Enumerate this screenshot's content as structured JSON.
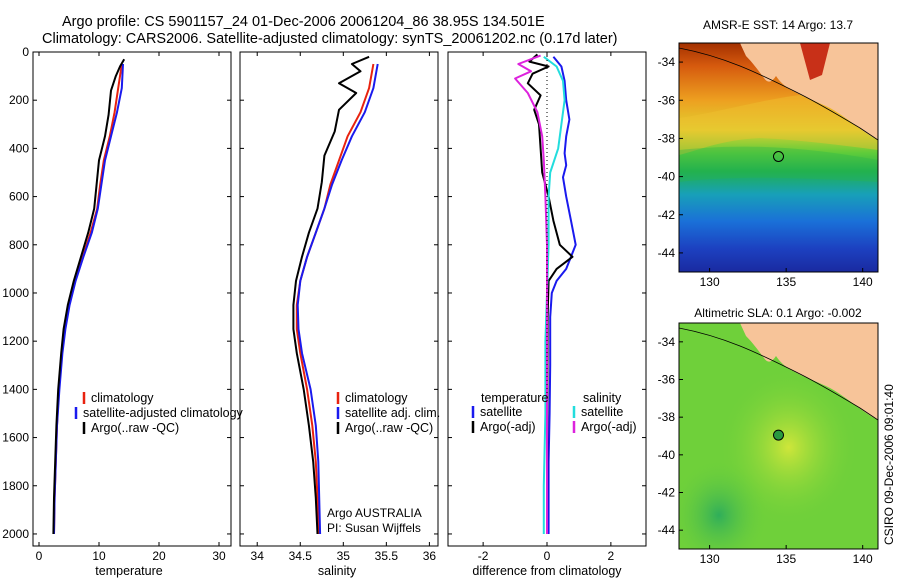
{
  "header": {
    "line1": "Argo profile: CS 5901157_24 01-Dec-2006 20061204_86 38.95S 134.501E",
    "line2": "Climatology: CARS2006. Satellite-adjusted climatology: synTS_20061202.nc (0.17d later)"
  },
  "credit": "CSIRO 09-Dec-2006 09:01:40",
  "colors": {
    "climatology": "#e8220f",
    "satellite": "#1a1aee",
    "argo": "#000000",
    "sal_sat": "#22dddd",
    "sal_argo": "#dd22dd"
  },
  "chart_data": [
    {
      "type": "line",
      "name": "temperature",
      "xlabel": "temperature",
      "xlim": [
        -1,
        32
      ],
      "ylim": [
        2050,
        0
      ],
      "xticks": [
        0,
        10,
        20,
        30
      ],
      "yticks": [
        0,
        200,
        400,
        600,
        800,
        1000,
        1200,
        1400,
        1600,
        1800,
        2000
      ],
      "series": [
        {
          "name": "climatology",
          "color": "#e8220f",
          "points": [
            [
              13.8,
              50
            ],
            [
              13.2,
              150
            ],
            [
              12.6,
              250
            ],
            [
              11.8,
              350
            ],
            [
              10.8,
              450
            ],
            [
              10.2,
              550
            ],
            [
              9.7,
              650
            ],
            [
              8.6,
              750
            ],
            [
              7.3,
              850
            ],
            [
              6.0,
              950
            ],
            [
              5.0,
              1050
            ],
            [
              4.3,
              1150
            ],
            [
              3.8,
              1250
            ],
            [
              3.3,
              1400
            ],
            [
              3.0,
              1550
            ],
            [
              2.8,
              1700
            ],
            [
              2.6,
              1850
            ],
            [
              2.5,
              2000
            ]
          ]
        },
        {
          "name": "satellite-adjusted climatology",
          "color": "#1a1aee",
          "points": [
            [
              14.0,
              50
            ],
            [
              13.8,
              150
            ],
            [
              13.0,
              250
            ],
            [
              12.0,
              350
            ],
            [
              11.0,
              450
            ],
            [
              10.4,
              550
            ],
            [
              9.8,
              650
            ],
            [
              8.8,
              750
            ],
            [
              7.4,
              850
            ],
            [
              6.1,
              950
            ],
            [
              5.1,
              1050
            ],
            [
              4.4,
              1150
            ],
            [
              3.9,
              1250
            ],
            [
              3.4,
              1400
            ],
            [
              3.0,
              1550
            ],
            [
              2.8,
              1700
            ],
            [
              2.6,
              1850
            ],
            [
              2.5,
              2000
            ]
          ]
        },
        {
          "name": "Argo(..raw -QC)",
          "color": "#000000",
          "points": [
            [
              14.2,
              30
            ],
            [
              13.5,
              60
            ],
            [
              12.8,
              100
            ],
            [
              12.0,
              160
            ],
            [
              11.6,
              260
            ],
            [
              11.0,
              350
            ],
            [
              10.0,
              450
            ],
            [
              9.6,
              550
            ],
            [
              9.2,
              650
            ],
            [
              8.2,
              750
            ],
            [
              7.0,
              850
            ],
            [
              5.8,
              950
            ],
            [
              4.8,
              1050
            ],
            [
              4.1,
              1150
            ],
            [
              3.7,
              1250
            ],
            [
              3.2,
              1400
            ],
            [
              2.9,
              1550
            ],
            [
              2.7,
              1700
            ],
            [
              2.5,
              1850
            ],
            [
              2.4,
              2000
            ]
          ]
        }
      ],
      "legend": {
        "position": "bottom-right",
        "entries": [
          "climatology",
          "satellite-adjusted climatology",
          "Argo(..raw -QC)"
        ]
      }
    },
    {
      "type": "line",
      "name": "salinity",
      "xlabel": "salinity",
      "xlim": [
        33.8,
        36.1
      ],
      "ylim": [
        2050,
        0
      ],
      "xticks": [
        34,
        34.5,
        35,
        35.5,
        36
      ],
      "yticks": [
        0,
        200,
        400,
        600,
        800,
        1000,
        1200,
        1400,
        1600,
        1800,
        2000
      ],
      "series": [
        {
          "name": "climatology",
          "color": "#e8220f",
          "points": [
            [
              35.35,
              50
            ],
            [
              35.3,
              150
            ],
            [
              35.2,
              250
            ],
            [
              35.05,
              350
            ],
            [
              34.95,
              450
            ],
            [
              34.85,
              550
            ],
            [
              34.78,
              650
            ],
            [
              34.68,
              750
            ],
            [
              34.58,
              850
            ],
            [
              34.5,
              950
            ],
            [
              34.46,
              1050
            ],
            [
              34.46,
              1150
            ],
            [
              34.5,
              1250
            ],
            [
              34.58,
              1400
            ],
            [
              34.64,
              1550
            ],
            [
              34.68,
              1700
            ],
            [
              34.7,
              1850
            ],
            [
              34.72,
              2000
            ]
          ]
        },
        {
          "name": "satellite adj. clim.",
          "color": "#1a1aee",
          "points": [
            [
              35.4,
              50
            ],
            [
              35.35,
              150
            ],
            [
              35.25,
              250
            ],
            [
              35.1,
              350
            ],
            [
              34.98,
              450
            ],
            [
              34.87,
              550
            ],
            [
              34.78,
              650
            ],
            [
              34.68,
              750
            ],
            [
              34.58,
              850
            ],
            [
              34.5,
              950
            ],
            [
              34.47,
              1050
            ],
            [
              34.48,
              1150
            ],
            [
              34.52,
              1250
            ],
            [
              34.62,
              1400
            ],
            [
              34.68,
              1550
            ],
            [
              34.71,
              1700
            ],
            [
              34.72,
              1850
            ],
            [
              34.73,
              2000
            ]
          ]
        },
        {
          "name": "Argo(..raw -QC)",
          "color": "#000000",
          "points": [
            [
              35.3,
              20
            ],
            [
              35.1,
              50
            ],
            [
              35.2,
              80
            ],
            [
              34.95,
              130
            ],
            [
              35.15,
              170
            ],
            [
              34.95,
              240
            ],
            [
              34.9,
              330
            ],
            [
              34.78,
              430
            ],
            [
              34.75,
              540
            ],
            [
              34.7,
              650
            ],
            [
              34.6,
              750
            ],
            [
              34.52,
              850
            ],
            [
              34.45,
              950
            ],
            [
              34.42,
              1050
            ],
            [
              34.42,
              1150
            ],
            [
              34.46,
              1250
            ],
            [
              34.54,
              1400
            ],
            [
              34.6,
              1550
            ],
            [
              34.65,
              1700
            ],
            [
              34.68,
              1850
            ],
            [
              34.7,
              2000
            ]
          ]
        }
      ],
      "legend": {
        "position": "bottom-right",
        "entries": [
          "climatology",
          "satellite adj. clim.",
          "Argo(..raw -QC)"
        ]
      },
      "annotations": [
        "Argo AUSTRALIA",
        "PI: Susan Wijffels"
      ]
    },
    {
      "type": "line",
      "name": "difference",
      "xlabel": "difference from climatology",
      "xlim": [
        -3.1,
        3.1
      ],
      "ylim": [
        2050,
        0
      ],
      "xticks": [
        -2,
        0,
        2
      ],
      "yticks": [
        0,
        200,
        400,
        600,
        800,
        1000,
        1200,
        1400,
        1600,
        1800,
        2000
      ],
      "series": [
        {
          "name": "temperature satellite",
          "color": "#1a1aee",
          "points": [
            [
              0.2,
              20
            ],
            [
              0.45,
              60
            ],
            [
              0.55,
              120
            ],
            [
              0.6,
              200
            ],
            [
              0.7,
              280
            ],
            [
              0.6,
              350
            ],
            [
              0.55,
              420
            ],
            [
              0.6,
              470
            ],
            [
              0.5,
              520
            ],
            [
              0.6,
              600
            ],
            [
              0.75,
              700
            ],
            [
              0.9,
              800
            ],
            [
              0.6,
              900
            ],
            [
              0.3,
              950
            ],
            [
              0.15,
              1000
            ],
            [
              0.1,
              1100
            ],
            [
              0.1,
              1300
            ],
            [
              0.08,
              1500
            ],
            [
              0.05,
              1700
            ],
            [
              0.05,
              2000
            ]
          ]
        },
        {
          "name": "temperature Argo(-adj)",
          "color": "#000000",
          "points": [
            [
              -0.3,
              10
            ],
            [
              -0.55,
              40
            ],
            [
              0.05,
              60
            ],
            [
              -0.45,
              90
            ],
            [
              -0.6,
              130
            ],
            [
              -0.2,
              180
            ],
            [
              -0.4,
              240
            ],
            [
              -0.25,
              300
            ],
            [
              -0.2,
              400
            ],
            [
              -0.15,
              500
            ],
            [
              0.05,
              600
            ],
            [
              0.2,
              700
            ],
            [
              0.4,
              800
            ],
            [
              0.8,
              850
            ],
            [
              0.3,
              900
            ],
            [
              0.05,
              950
            ],
            [
              0.02,
              1100
            ],
            [
              0.01,
              1500
            ],
            [
              0.0,
              2000
            ]
          ]
        },
        {
          "name": "salinity satellite",
          "color": "#22dddd",
          "points": [
            [
              -0.1,
              20
            ],
            [
              0.3,
              60
            ],
            [
              0.5,
              120
            ],
            [
              0.55,
              200
            ],
            [
              0.45,
              300
            ],
            [
              0.35,
              400
            ],
            [
              0.1,
              500
            ],
            [
              0.05,
              600
            ],
            [
              0.05,
              800
            ],
            [
              0.0,
              1000
            ],
            [
              -0.05,
              1200
            ],
            [
              -0.05,
              1500
            ],
            [
              -0.1,
              1800
            ],
            [
              -0.1,
              2000
            ]
          ]
        },
        {
          "name": "salinity Argo(-adj)",
          "color": "#dd22dd",
          "points": [
            [
              -0.2,
              15
            ],
            [
              -0.9,
              50
            ],
            [
              -0.5,
              80
            ],
            [
              -1.0,
              110
            ],
            [
              -0.6,
              170
            ],
            [
              -0.3,
              250
            ],
            [
              -0.15,
              350
            ],
            [
              -0.1,
              450
            ],
            [
              -0.05,
              600
            ],
            [
              0.0,
              800
            ],
            [
              0.0,
              1200
            ],
            [
              0.0,
              2000
            ]
          ]
        }
      ],
      "legend": {
        "position": "bottom",
        "headers": [
          "temperature",
          "salinity"
        ],
        "entries": [
          "satellite",
          "Argo(-adj)",
          "satellite",
          "Argo(-adj)"
        ]
      }
    },
    {
      "type": "heatmap",
      "name": "sst-map",
      "title": "AMSR-E SST: 14  Argo: 13.7",
      "xlim": [
        128,
        141
      ],
      "ylim": [
        -45,
        -33
      ],
      "xticks": [
        130,
        135,
        140
      ],
      "yticks": [
        -34,
        -36,
        -38,
        -40,
        -42,
        -44
      ],
      "marker": {
        "lon": 134.5,
        "lat": -38.95,
        "shape": "circle"
      }
    },
    {
      "type": "heatmap",
      "name": "sla-map",
      "title": "Altimetric SLA: 0.1  Argo: -0.002",
      "xlim": [
        128,
        141
      ],
      "ylim": [
        -45,
        -33
      ],
      "xticks": [
        130,
        135,
        140
      ],
      "yticks": [
        -34,
        -36,
        -38,
        -40,
        -42,
        -44
      ],
      "marker": {
        "lon": 134.5,
        "lat": -38.95,
        "shape": "filled-circle"
      }
    }
  ],
  "legend_temperature": {
    "l1": "climatology",
    "l2": "satellite-adjusted climatology",
    "l3": "Argo(..raw -QC)"
  },
  "legend_salinity": {
    "l1": "climatology",
    "l2": "satellite adj. clim.",
    "l3": "Argo(..raw -QC)"
  },
  "legend_diff": {
    "h1": "temperature",
    "h2": "salinity",
    "t1": "satellite",
    "t2": "Argo(-adj)",
    "s1": "satellite",
    "s2": "Argo(-adj)"
  },
  "salinity_note": {
    "l1": "Argo AUSTRALIA",
    "l2": "PI: Susan Wijffels"
  }
}
